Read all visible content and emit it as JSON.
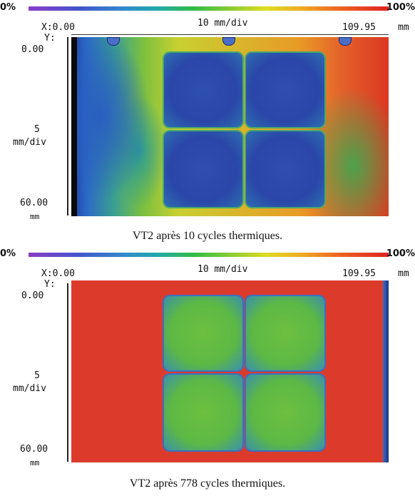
{
  "panels": [
    {
      "scale_min": "0%",
      "scale_max": "100%",
      "x_start": "X:0.00",
      "x_division": "10 mm/div",
      "x_end": "109.95",
      "x_unit": "mm",
      "y_label": "Y:",
      "y_zero": "0.00",
      "y_mid": "5",
      "y_division": "mm/div",
      "y_end": "60.00",
      "y_unit": "mm",
      "caption": "VT2 après 10 cycles thermiques."
    },
    {
      "scale_min": "0%",
      "scale_max": "100%",
      "x_start": "X:0.00",
      "x_division": "10 mm/div",
      "x_end": "109.95",
      "x_unit": "mm",
      "y_label": "Y:",
      "y_zero": "0.00",
      "y_mid": "5",
      "y_division": "mm/div",
      "y_end": "60.00",
      "y_unit": "mm",
      "caption": "VT2 après 778 cycles thermiques."
    }
  ],
  "colors": {
    "scale_low": "#8a3cc8",
    "scale_high": "#dd2222",
    "delaminated_region_a": "#2a46a8",
    "bonded_region_b": "#5cb845",
    "background_b": "#dc3b2c"
  }
}
